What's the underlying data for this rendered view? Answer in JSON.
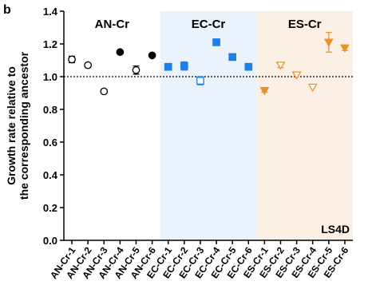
{
  "chart_data": {
    "type": "scatter",
    "panel_label": "b",
    "title": "",
    "xlabel": "",
    "ylabel": "Growth rate relative to\nthe corresponding ancestor",
    "ylim": [
      0.0,
      1.4
    ],
    "yticks": [
      "0.0",
      "0.2",
      "0.4",
      "0.6",
      "0.8",
      "1.0",
      "1.2",
      "1.4"
    ],
    "reference_line": 1.0,
    "annotation": "LS4D",
    "groups": [
      {
        "name": "AN-Cr",
        "color": "#000000",
        "shade": "#ffffff",
        "label_color": "#000000"
      },
      {
        "name": "EC-Cr",
        "color": "#1f7fe8",
        "shade": "#eaf2fc",
        "label_color": "#000000"
      },
      {
        "name": "ES-Cr",
        "color": "#e8922a",
        "shade": "#fcefe3",
        "label_color": "#000000"
      }
    ],
    "points": [
      {
        "label": "AN-Cr-1",
        "group": 0,
        "marker": "circle",
        "filled": false,
        "y": 1.105,
        "err": 0.02
      },
      {
        "label": "AN-Cr-2",
        "group": 0,
        "marker": "circle",
        "filled": false,
        "y": 1.07,
        "err": 0.012
      },
      {
        "label": "AN-Cr-3",
        "group": 0,
        "marker": "circle",
        "filled": false,
        "y": 0.91,
        "err": 0.0
      },
      {
        "label": "AN-Cr-4",
        "group": 0,
        "marker": "circle",
        "filled": true,
        "y": 1.15,
        "err": 0.0
      },
      {
        "label": "AN-Cr-5",
        "group": 0,
        "marker": "circle",
        "filled": false,
        "y": 1.04,
        "err": 0.025
      },
      {
        "label": "AN-Cr-6",
        "group": 0,
        "marker": "circle",
        "filled": true,
        "y": 1.13,
        "err": 0.0
      },
      {
        "label": "EC-Cr-1",
        "group": 1,
        "marker": "square",
        "filled": true,
        "y": 1.06,
        "err": 0.01
      },
      {
        "label": "EC-Cr-2",
        "group": 1,
        "marker": "square",
        "filled": true,
        "y": 1.065,
        "err": 0.025
      },
      {
        "label": "EC-Cr-3",
        "group": 1,
        "marker": "square",
        "filled": false,
        "y": 0.975,
        "err": 0.025
      },
      {
        "label": "EC-Cr-4",
        "group": 1,
        "marker": "square",
        "filled": true,
        "y": 1.21,
        "err": 0.0
      },
      {
        "label": "EC-Cr-5",
        "group": 1,
        "marker": "square",
        "filled": true,
        "y": 1.12,
        "err": 0.0
      },
      {
        "label": "EC-Cr-6",
        "group": 1,
        "marker": "square",
        "filled": true,
        "y": 1.06,
        "err": 0.0
      },
      {
        "label": "ES-Cr-1",
        "group": 2,
        "marker": "triangle",
        "filled": true,
        "y": 0.915,
        "err": 0.01
      },
      {
        "label": "ES-Cr-2",
        "group": 2,
        "marker": "triangle",
        "filled": false,
        "y": 1.07,
        "err": 0.015
      },
      {
        "label": "ES-Cr-3",
        "group": 2,
        "marker": "triangle",
        "filled": false,
        "y": 1.01,
        "err": 0.0
      },
      {
        "label": "ES-Cr-4",
        "group": 2,
        "marker": "triangle",
        "filled": false,
        "y": 0.935,
        "err": 0.0
      },
      {
        "label": "ES-Cr-5",
        "group": 2,
        "marker": "triangle",
        "filled": true,
        "y": 1.21,
        "err": 0.06
      },
      {
        "label": "ES-Cr-6",
        "group": 2,
        "marker": "triangle",
        "filled": true,
        "y": 1.175,
        "err": 0.015
      }
    ]
  }
}
